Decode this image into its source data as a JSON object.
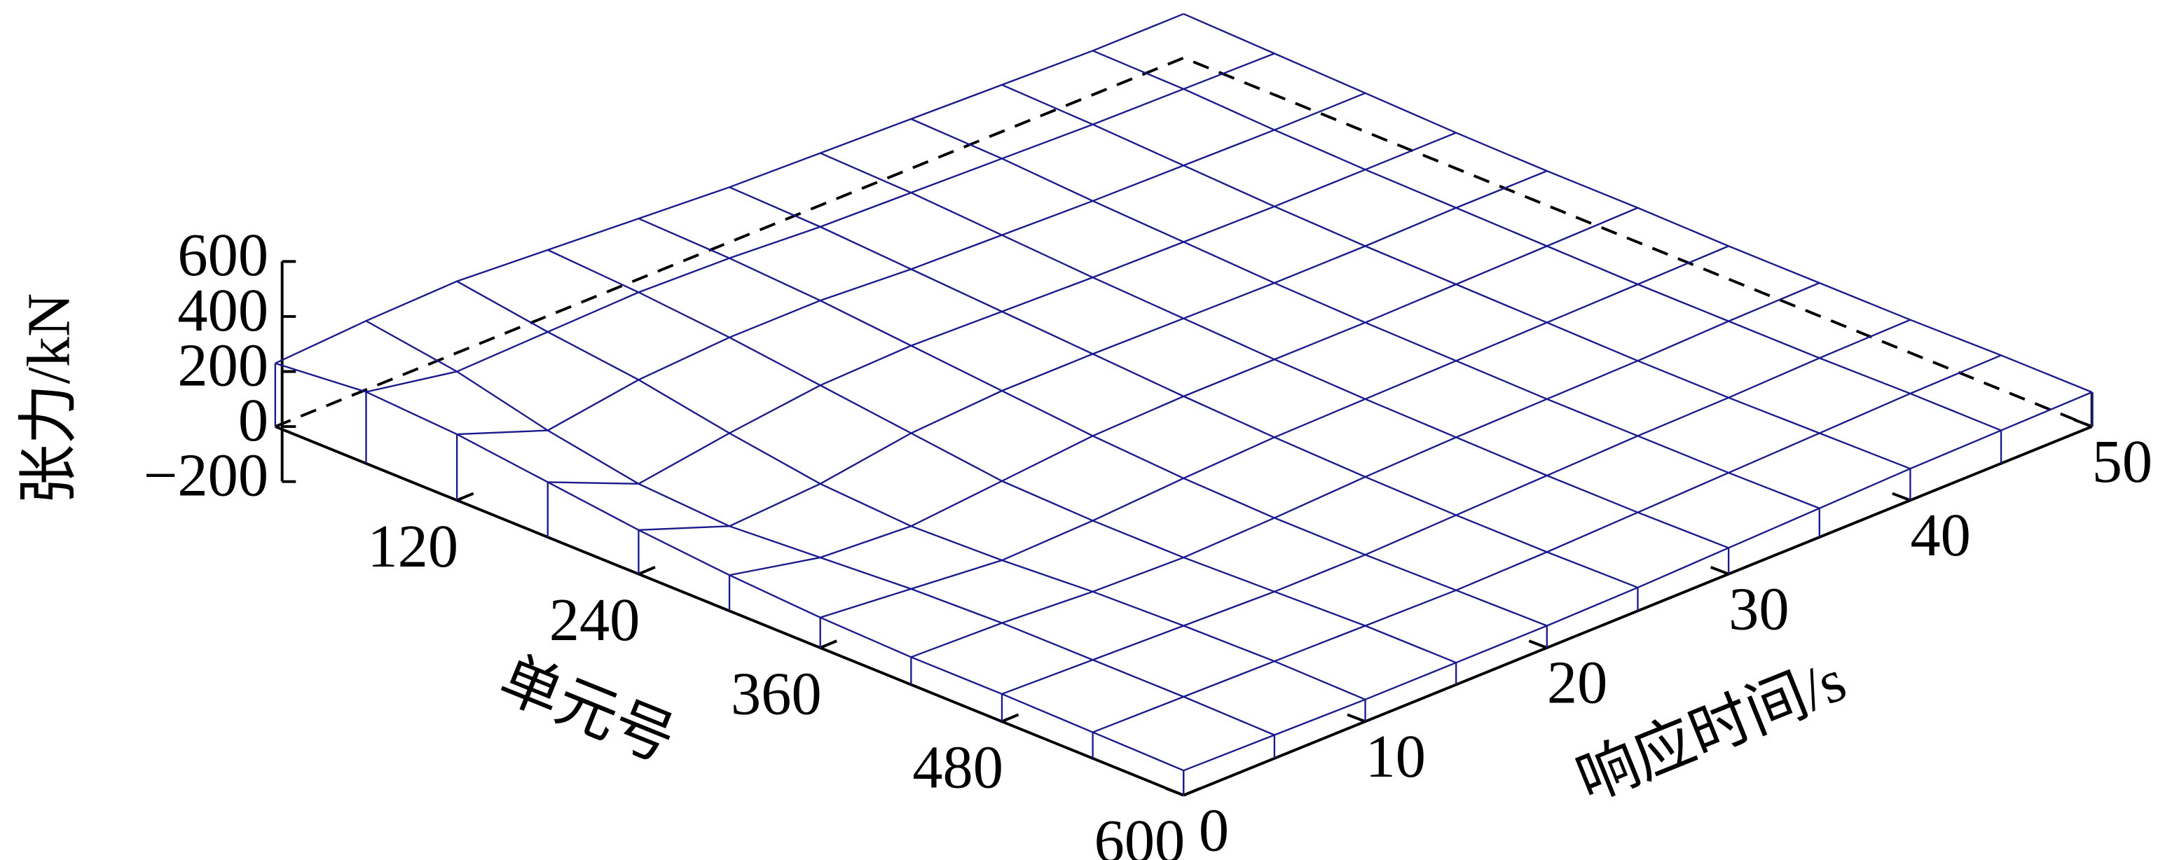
{
  "chart_data": {
    "type": "surface",
    "xlabel": "单元号",
    "ylabel": "响应时间/s",
    "zlabel": "张力/kN",
    "color": "#1a1a8c",
    "xlim": [
      0,
      600
    ],
    "ylim": [
      0,
      50
    ],
    "zlim": [
      -200,
      600
    ],
    "xticks": [
      120,
      240,
      360,
      480,
      600
    ],
    "yticks": [
      0,
      10,
      20,
      30,
      40,
      50
    ],
    "zticks": [
      {
        "value": -200,
        "label": "−200"
      },
      0,
      200,
      400,
      600
    ],
    "x": [
      0,
      60,
      120,
      180,
      240,
      300,
      360,
      420,
      480,
      540,
      600
    ],
    "y": [
      0,
      5,
      10,
      15,
      20,
      25,
      30,
      35,
      40,
      45,
      50
    ],
    "z": [
      [
        230,
        260,
        240,
        200,
        160,
        130,
        110,
        100,
        100,
        95,
        90
      ],
      [
        250,
        200,
        120,
        60,
        40,
        60,
        80,
        90,
        90,
        90,
        85
      ],
      [
        260,
        210,
        170,
        110,
        60,
        40,
        50,
        70,
        80,
        85,
        80
      ],
      [
        240,
        220,
        190,
        150,
        110,
        70,
        60,
        60,
        70,
        80,
        80
      ],
      [
        220,
        210,
        190,
        160,
        130,
        100,
        80,
        70,
        70,
        75,
        80
      ],
      [
        200,
        190,
        170,
        150,
        130,
        110,
        95,
        85,
        80,
        80,
        85
      ],
      [
        190,
        180,
        160,
        140,
        125,
        110,
        100,
        95,
        90,
        90,
        95
      ],
      [
        180,
        170,
        150,
        135,
        120,
        110,
        105,
        100,
        100,
        100,
        105
      ],
      [
        170,
        160,
        145,
        130,
        120,
        115,
        110,
        105,
        105,
        110,
        115
      ],
      [
        160,
        155,
        140,
        130,
        125,
        120,
        115,
        115,
        115,
        120,
        120
      ],
      [
        160,
        150,
        140,
        130,
        125,
        125,
        120,
        120,
        120,
        125,
        125
      ]
    ]
  }
}
